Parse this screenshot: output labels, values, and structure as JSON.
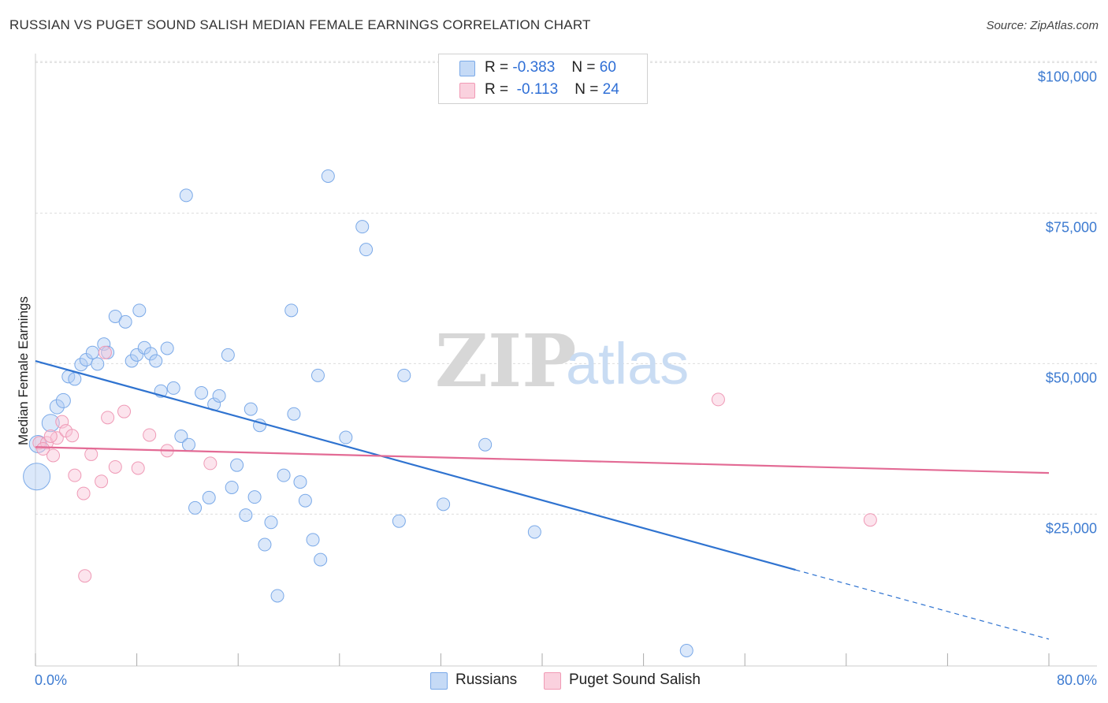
{
  "title": "RUSSIAN VS PUGET SOUND SALISH MEDIAN FEMALE EARNINGS CORRELATION CHART",
  "source": "Source: ZipAtlas.com",
  "watermark": {
    "zip": "ZIP",
    "atlas": "atlas"
  },
  "legend": {
    "r_label": "R =",
    "n_label": "N =",
    "rows": [
      {
        "r": "-0.383",
        "n": "60",
        "color": "#7aa9e8",
        "fill": "#c5daf6"
      },
      {
        "r": "-0.113",
        "n": "24",
        "color": "#f19ab5",
        "fill": "#fad1de"
      }
    ]
  },
  "bottom_legend": [
    {
      "label": "Russians"
    },
    {
      "label": "Puget Sound Salish"
    }
  ],
  "colors": {
    "blue": "#2f73d0",
    "pink": "#e36b95",
    "blue_point": "#8fb7ea",
    "pink_point": "#f2a6bf"
  },
  "chart_data": {
    "type": "scatter",
    "title": "RUSSIAN VS PUGET SOUND SALISH MEDIAN FEMALE EARNINGS CORRELATION CHART",
    "xlabel": "",
    "ylabel": "Median Female Earnings",
    "xlim": [
      0,
      80
    ],
    "ylim": [
      0,
      105000
    ],
    "x_tick_labels": [
      "0.0%",
      "80.0%"
    ],
    "y_tick_labels": [
      "$25,000",
      "$50,000",
      "$75,000",
      "$100,000"
    ],
    "y_ticks": [
      25000,
      50000,
      75000,
      100000
    ],
    "grid": true,
    "legend_position": "top-center",
    "series": [
      {
        "name": "Russians",
        "color": "#8fb7ea",
        "trend": {
          "x0": 0,
          "y0": 52800,
          "x1": 60,
          "y1": 18100,
          "dashed_to_x": 80,
          "dashed_to_y": 6600
        },
        "points": [
          [
            0.1,
            33600,
            34
          ],
          [
            0.2,
            39000,
            22
          ],
          [
            1.2,
            42500,
            22
          ],
          [
            1.7,
            45200,
            18
          ],
          [
            2.2,
            46200,
            18
          ],
          [
            2.6,
            50200,
            16
          ],
          [
            3.1,
            49800,
            16
          ],
          [
            3.6,
            52200,
            16
          ],
          [
            4.0,
            53000,
            16
          ],
          [
            4.5,
            54200,
            16
          ],
          [
            4.9,
            52300,
            16
          ],
          [
            5.4,
            55600,
            16
          ],
          [
            5.7,
            54200,
            16
          ],
          [
            6.3,
            60200,
            16
          ],
          [
            7.1,
            59300,
            16
          ],
          [
            7.6,
            52800,
            16
          ],
          [
            8.0,
            53800,
            16
          ],
          [
            8.2,
            61200,
            16
          ],
          [
            8.6,
            55000,
            16
          ],
          [
            9.1,
            54000,
            16
          ],
          [
            9.5,
            52800,
            16
          ],
          [
            9.9,
            47800,
            16
          ],
          [
            10.4,
            54900,
            16
          ],
          [
            10.9,
            48300,
            16
          ],
          [
            11.5,
            40300,
            16
          ],
          [
            11.9,
            80300,
            16
          ],
          [
            12.1,
            38900,
            16
          ],
          [
            12.6,
            28400,
            16
          ],
          [
            13.1,
            47500,
            16
          ],
          [
            13.7,
            30100,
            16
          ],
          [
            14.1,
            45600,
            16
          ],
          [
            14.5,
            47000,
            16
          ],
          [
            15.2,
            53800,
            16
          ],
          [
            15.5,
            31800,
            16
          ],
          [
            15.9,
            35500,
            16
          ],
          [
            16.6,
            27200,
            16
          ],
          [
            17.0,
            44800,
            16
          ],
          [
            17.3,
            30200,
            16
          ],
          [
            17.7,
            42100,
            16
          ],
          [
            18.1,
            22300,
            16
          ],
          [
            18.6,
            26000,
            16
          ],
          [
            19.1,
            13800,
            16
          ],
          [
            19.6,
            33800,
            16
          ],
          [
            20.2,
            61200,
            16
          ],
          [
            20.4,
            44000,
            16
          ],
          [
            20.9,
            32700,
            16
          ],
          [
            21.3,
            29600,
            16
          ],
          [
            21.9,
            23100,
            16
          ],
          [
            22.3,
            50400,
            16
          ],
          [
            22.5,
            19800,
            16
          ],
          [
            23.1,
            83500,
            16
          ],
          [
            24.5,
            40100,
            16
          ],
          [
            25.8,
            75100,
            16
          ],
          [
            26.1,
            71300,
            16
          ],
          [
            28.7,
            26200,
            16
          ],
          [
            29.1,
            50400,
            16
          ],
          [
            32.2,
            29000,
            16
          ],
          [
            35.5,
            38900,
            16
          ],
          [
            39.4,
            24400,
            16
          ],
          [
            51.4,
            4700,
            16
          ]
        ]
      },
      {
        "name": "Puget Sound Salish",
        "color": "#f2a6bf",
        "trend": {
          "x0": 0,
          "y0": 38500,
          "x1": 80,
          "y1": 34200
        },
        "points": [
          [
            0.3,
            39200,
            16
          ],
          [
            0.9,
            39200,
            16
          ],
          [
            1.4,
            37100,
            16
          ],
          [
            1.7,
            40000,
            16
          ],
          [
            2.1,
            42700,
            16
          ],
          [
            2.4,
            41200,
            16
          ],
          [
            2.9,
            40400,
            16
          ],
          [
            3.1,
            33800,
            16
          ],
          [
            3.8,
            30800,
            16
          ],
          [
            3.9,
            17100,
            16
          ],
          [
            4.4,
            37300,
            16
          ],
          [
            5.2,
            32800,
            16
          ],
          [
            5.5,
            54200,
            16
          ],
          [
            5.7,
            43400,
            16
          ],
          [
            6.3,
            35200,
            16
          ],
          [
            7.0,
            44400,
            16
          ],
          [
            8.1,
            35000,
            16
          ],
          [
            9.0,
            40500,
            16
          ],
          [
            10.4,
            37900,
            16
          ],
          [
            13.8,
            35800,
            16
          ],
          [
            53.9,
            46400,
            16
          ],
          [
            65.9,
            26400,
            16
          ],
          [
            1.2,
            40300,
            16
          ],
          [
            0.6,
            38200,
            16
          ]
        ]
      }
    ]
  }
}
